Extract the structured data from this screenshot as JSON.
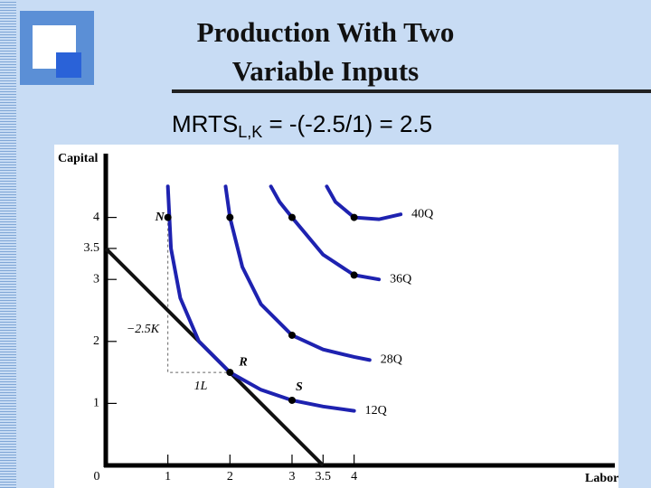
{
  "slide": {
    "title": [
      "Production With Two",
      "Variable Inputs"
    ],
    "formula": {
      "main": "MRTS",
      "subscript": "L,K",
      "rest": " = -(-2.5/1) = 2.5"
    }
  },
  "chart_data": {
    "type": "line",
    "x_label": "Labor",
    "y_label": "Capital",
    "xlim": [
      0,
      8.2
    ],
    "ylim": [
      0,
      5
    ],
    "xticks": [
      0,
      1,
      2,
      3,
      3.5,
      4
    ],
    "yticks": [
      1,
      2,
      3,
      3.5,
      4
    ],
    "series": [
      {
        "name": "12Q",
        "color": "#1e22b0",
        "x": [
          1,
          1.05,
          1.2,
          1.5,
          2,
          2.5,
          3,
          3.5,
          4
        ],
        "values": [
          4.5,
          3.5,
          2.7,
          2.0,
          1.5,
          1.22,
          1.05,
          0.95,
          0.88
        ]
      },
      {
        "name": "28Q",
        "color": "#1e22b0",
        "x": [
          1.93,
          2,
          2.2,
          2.5,
          3,
          3.5,
          4,
          4.25
        ],
        "values": [
          4.5,
          4,
          3.2,
          2.6,
          2.1,
          1.87,
          1.75,
          1.7
        ]
      },
      {
        "name": "36Q",
        "color": "#1e22b0",
        "x": [
          2.66,
          2.8,
          3,
          3.5,
          4,
          4.4
        ],
        "values": [
          4.5,
          4.25,
          4,
          3.4,
          3.07,
          3.0
        ]
      },
      {
        "name": "40Q",
        "color": "#1e22b0",
        "x": [
          3.56,
          3.7,
          4,
          4.4,
          4.75
        ],
        "values": [
          4.5,
          4.25,
          4.0,
          3.97,
          4.05
        ]
      }
    ],
    "budget_line": {
      "color": "#111111",
      "x": [
        0,
        3.5
      ],
      "values": [
        3.5,
        0
      ]
    },
    "guide": {
      "x": [
        1,
        1,
        2
      ],
      "values": [
        4,
        1.5,
        1.5
      ]
    },
    "points": [
      {
        "label": "N",
        "x": 1,
        "y": 4
      },
      {
        "x": 2,
        "y": 4
      },
      {
        "x": 3,
        "y": 4
      },
      {
        "x": 4,
        "y": 4
      },
      {
        "x": 4,
        "y": 3.07
      },
      {
        "x": 3,
        "y": 2.1
      },
      {
        "label": "R",
        "x": 2,
        "y": 1.5
      },
      {
        "label": "S",
        "x": 3,
        "y": 1.05
      }
    ],
    "annotations": [
      "−2.5K",
      "1L"
    ]
  }
}
